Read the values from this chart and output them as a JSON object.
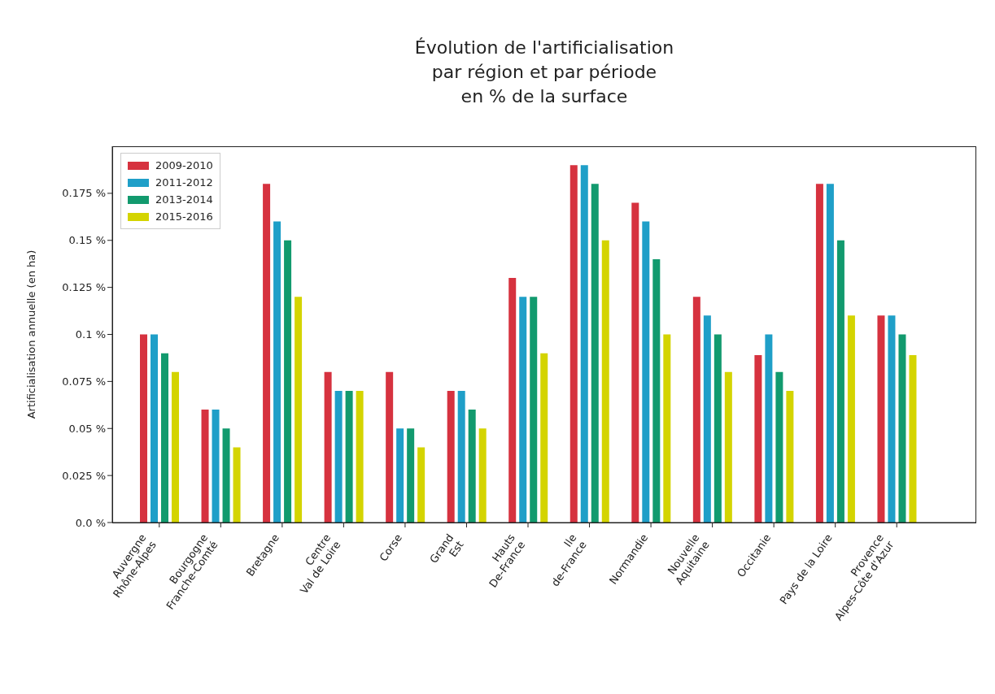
{
  "chart_data": {
    "type": "bar",
    "title": "Évolution de l'artificialisation\npar région et par période\nen % de la surface",
    "ylabel": "Artificialisation annuelle (en ha)",
    "categories": [
      "Auvergne\nRhône-Alpes",
      "Bourgogne\nFranche-Comté",
      "Bretagne",
      "Centre\nVal de Loire",
      "Corse",
      "Grand\nEst",
      "Hauts\nDe-France",
      "Ile\nde-France",
      "Normandie",
      "Nouvelle\nAquitaine",
      "Occitanie",
      "Pays de la Loire",
      "Provence\nAlpes-Côte d'Azur"
    ],
    "series": [
      {
        "name": "2009-2010",
        "color": "#d6323f",
        "values": [
          0.1,
          0.06,
          0.18,
          0.08,
          0.08,
          0.07,
          0.13,
          0.19,
          0.17,
          0.12,
          0.089,
          0.18,
          0.11
        ]
      },
      {
        "name": "2011-2012",
        "color": "#1f9fc8",
        "values": [
          0.1,
          0.06,
          0.16,
          0.07,
          0.05,
          0.07,
          0.12,
          0.19,
          0.16,
          0.11,
          0.1,
          0.18,
          0.11
        ]
      },
      {
        "name": "2013-2014",
        "color": "#129a6e",
        "values": [
          0.09,
          0.05,
          0.15,
          0.07,
          0.05,
          0.06,
          0.12,
          0.18,
          0.14,
          0.1,
          0.08,
          0.15,
          0.1
        ]
      },
      {
        "name": "2015-2016",
        "color": "#d4d400",
        "values": [
          0.08,
          0.04,
          0.12,
          0.07,
          0.04,
          0.05,
          0.09,
          0.15,
          0.1,
          0.08,
          0.07,
          0.11,
          0.089
        ]
      }
    ],
    "ylim": [
      0,
      0.2
    ],
    "yticks": [
      {
        "value": 0,
        "label": "0.0 %"
      },
      {
        "value": 0.025,
        "label": "0.025 %"
      },
      {
        "value": 0.05,
        "label": "0.05 %"
      },
      {
        "value": 0.075,
        "label": "0.075 %"
      },
      {
        "value": 0.1,
        "label": "0.1 %"
      },
      {
        "value": 0.125,
        "label": "0.125 %"
      },
      {
        "value": 0.15,
        "label": "0.15 %"
      },
      {
        "value": 0.175,
        "label": "0.175 %"
      }
    ],
    "grid": false,
    "legend": "top left"
  }
}
